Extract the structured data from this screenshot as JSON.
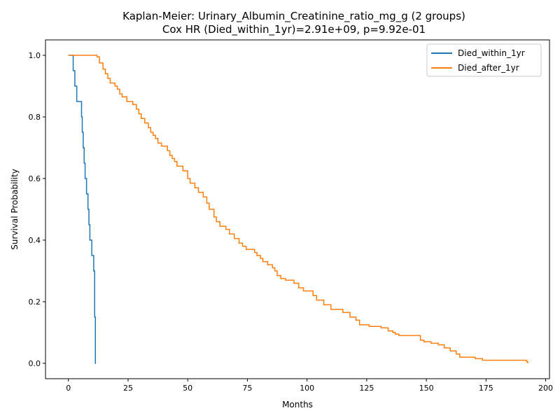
{
  "chart_data": {
    "type": "line",
    "title": "Kaplan-Meier: Urinary_Albumin_Creatinine_ratio_mg_g (2 groups)",
    "subtitle": "Cox HR (Died_within_1yr)=2.91e+09, p=9.92e-01",
    "xlabel": "Months",
    "ylabel": "Survival Probability",
    "xlim": [
      -9.6,
      201.6
    ],
    "ylim": [
      -0.05,
      1.05
    ],
    "xticks": [
      0,
      25,
      50,
      75,
      100,
      125,
      150,
      175,
      200
    ],
    "yticks": [
      0.0,
      0.2,
      0.4,
      0.6,
      0.8,
      1.0
    ],
    "xtick_labels": [
      "0",
      "25",
      "50",
      "75",
      "100",
      "125",
      "150",
      "175",
      "200"
    ],
    "ytick_labels": [
      "0.0",
      "0.2",
      "0.4",
      "0.6",
      "0.8",
      "1.0"
    ],
    "grid": false,
    "legend_position": "top-right",
    "series": [
      {
        "name": "Died_within_1yr",
        "color": "#1f77b4",
        "step": "post",
        "x": [
          0,
          2,
          2.3,
          2.7,
          3.5,
          5.5,
          5.8,
          6.2,
          6.6,
          7.0,
          7.6,
          8.2,
          8.6,
          9.0,
          9.4,
          9.8,
          10.6,
          11.0,
          11.3,
          11.6
        ],
        "y": [
          1.0,
          0.95,
          0.95,
          0.9,
          0.85,
          0.8,
          0.75,
          0.7,
          0.65,
          0.6,
          0.55,
          0.5,
          0.45,
          0.4,
          0.4,
          0.35,
          0.3,
          0.15,
          0.0,
          0.0
        ]
      },
      {
        "name": "Died_after_1yr",
        "color": "#ff7f0e",
        "step": "post",
        "x": [
          0,
          12.0,
          13.0,
          14.5,
          15.5,
          16.5,
          17.5,
          19.5,
          20.5,
          21.5,
          22.5,
          24.5,
          27.0,
          28.5,
          29.5,
          30.5,
          32.0,
          33.5,
          34.5,
          35.5,
          36.5,
          37.5,
          39.0,
          41.5,
          42.5,
          43.5,
          44.5,
          45.5,
          48.0,
          50.0,
          51.0,
          53.0,
          54.5,
          56.5,
          58.0,
          59.0,
          61.0,
          62.0,
          63.5,
          66.0,
          67.5,
          69.5,
          71.5,
          73.0,
          74.5,
          78.0,
          79.0,
          80.5,
          81.5,
          83.5,
          85.5,
          86.5,
          87.5,
          89.0,
          91.0,
          94.5,
          96.5,
          98.5,
          102.5,
          104.0,
          107.0,
          110.0,
          115.0,
          118.0,
          120.5,
          122.0,
          126.0,
          131.0,
          134.0,
          136.0,
          137.0,
          138.5,
          147.5,
          149.0,
          152.0,
          155.0,
          157.5,
          160.0,
          162.5,
          164.0,
          170.5,
          173.5,
          192.0,
          192.5
        ],
        "y": [
          1.0,
          0.995,
          0.975,
          0.955,
          0.94,
          0.925,
          0.91,
          0.9,
          0.89,
          0.875,
          0.865,
          0.85,
          0.84,
          0.825,
          0.81,
          0.795,
          0.78,
          0.765,
          0.75,
          0.74,
          0.73,
          0.715,
          0.705,
          0.69,
          0.675,
          0.665,
          0.655,
          0.64,
          0.625,
          0.6,
          0.585,
          0.57,
          0.555,
          0.54,
          0.52,
          0.5,
          0.475,
          0.46,
          0.445,
          0.435,
          0.42,
          0.405,
          0.39,
          0.38,
          0.37,
          0.36,
          0.35,
          0.34,
          0.33,
          0.32,
          0.31,
          0.3,
          0.285,
          0.275,
          0.27,
          0.26,
          0.245,
          0.235,
          0.22,
          0.205,
          0.19,
          0.175,
          0.165,
          0.15,
          0.14,
          0.125,
          0.12,
          0.115,
          0.105,
          0.1,
          0.095,
          0.09,
          0.075,
          0.07,
          0.065,
          0.06,
          0.05,
          0.04,
          0.03,
          0.02,
          0.015,
          0.01,
          0.005,
          0.0
        ]
      }
    ]
  }
}
